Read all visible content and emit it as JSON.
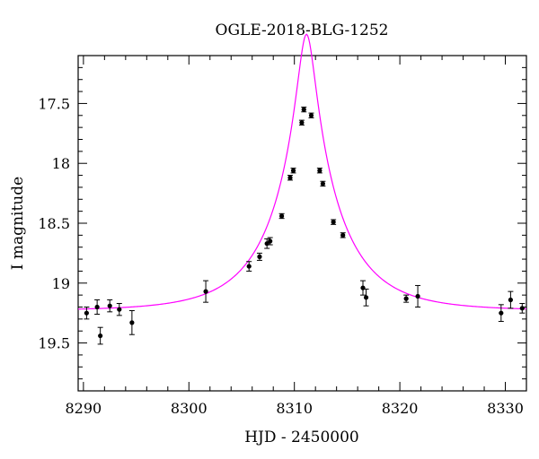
{
  "chart_data": {
    "type": "scatter",
    "title": "OGLE-2018-BLG-1252",
    "xlabel": "HJD - 2450000",
    "ylabel": "I magnitude",
    "xlim": [
      8289.5,
      8332
    ],
    "ylim": [
      19.9,
      17.1
    ],
    "y_inverted": true,
    "xticks": [
      8290,
      8300,
      8310,
      8320,
      8330
    ],
    "yticks": [
      17.5,
      18,
      18.5,
      19,
      19.5
    ],
    "xtick_labels": [
      "8290",
      "8300",
      "8310",
      "8320",
      "8330"
    ],
    "ytick_labels": [
      "17.5",
      "18",
      "18.5",
      "19",
      "19.5"
    ],
    "grid": false,
    "series": [
      {
        "kind": "points_with_errorbars",
        "color": "#000000",
        "points": [
          {
            "x": 8290.3,
            "y": 19.25,
            "err": 0.05
          },
          {
            "x": 8291.3,
            "y": 19.2,
            "err": 0.06
          },
          {
            "x": 8291.6,
            "y": 19.44,
            "err": 0.07
          },
          {
            "x": 8292.5,
            "y": 19.19,
            "err": 0.05
          },
          {
            "x": 8293.4,
            "y": 19.22,
            "err": 0.05
          },
          {
            "x": 8294.6,
            "y": 19.33,
            "err": 0.1
          },
          {
            "x": 8301.6,
            "y": 19.07,
            "err": 0.09
          },
          {
            "x": 8305.7,
            "y": 18.86,
            "err": 0.04
          },
          {
            "x": 8306.7,
            "y": 18.78,
            "err": 0.03
          },
          {
            "x": 8307.4,
            "y": 18.67,
            "err": 0.04
          },
          {
            "x": 8307.7,
            "y": 18.65,
            "err": 0.03
          },
          {
            "x": 8308.8,
            "y": 18.44,
            "err": 0.02
          },
          {
            "x": 8309.6,
            "y": 18.12,
            "err": 0.02
          },
          {
            "x": 8309.9,
            "y": 18.06,
            "err": 0.02
          },
          {
            "x": 8310.7,
            "y": 17.66,
            "err": 0.02
          },
          {
            "x": 8310.9,
            "y": 17.55,
            "err": 0.02
          },
          {
            "x": 8311.6,
            "y": 17.6,
            "err": 0.02
          },
          {
            "x": 8312.4,
            "y": 18.06,
            "err": 0.02
          },
          {
            "x": 8312.7,
            "y": 18.17,
            "err": 0.02
          },
          {
            "x": 8313.7,
            "y": 18.49,
            "err": 0.02
          },
          {
            "x": 8314.6,
            "y": 18.6,
            "err": 0.02
          },
          {
            "x": 8316.5,
            "y": 19.04,
            "err": 0.06
          },
          {
            "x": 8316.8,
            "y": 19.12,
            "err": 0.07
          },
          {
            "x": 8320.6,
            "y": 19.13,
            "err": 0.03
          },
          {
            "x": 8321.7,
            "y": 19.11,
            "err": 0.09
          },
          {
            "x": 8329.6,
            "y": 19.25,
            "err": 0.07
          },
          {
            "x": 8330.5,
            "y": 19.14,
            "err": 0.07
          },
          {
            "x": 8331.6,
            "y": 19.21,
            "err": 0.04
          }
        ]
      },
      {
        "kind": "model_curve",
        "color": "#ff00ff",
        "model": {
          "t0": 8311.15,
          "u0": 0.12,
          "tE": 6.5,
          "baseline_mag": 19.23
        }
      }
    ]
  }
}
